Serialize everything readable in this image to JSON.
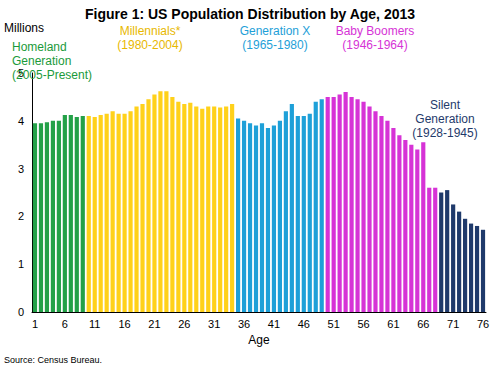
{
  "chart_data": {
    "type": "bar",
    "title": "Figure 1: US Population Distribution by Age, 2013",
    "ylabel": "Millions",
    "xlabel": "Age",
    "source": "Source: Census Bureau.",
    "categories": [
      "1",
      null,
      null,
      null,
      null,
      "6",
      null,
      null,
      null,
      null,
      "11",
      null,
      null,
      null,
      null,
      "16",
      null,
      null,
      null,
      null,
      "21",
      null,
      null,
      null,
      null,
      "26",
      null,
      null,
      null,
      null,
      "31",
      null,
      null,
      null,
      null,
      "36",
      null,
      null,
      null,
      null,
      "41",
      null,
      null,
      null,
      null,
      "46",
      null,
      null,
      null,
      null,
      "51",
      null,
      null,
      null,
      null,
      "56",
      null,
      null,
      null,
      null,
      "61",
      null,
      null,
      null,
      null,
      "66",
      null,
      null,
      null,
      null,
      "71",
      null,
      null,
      null,
      null,
      "76"
    ],
    "values": [
      3.95,
      3.95,
      3.97,
      4.0,
      4.0,
      4.12,
      4.12,
      4.08,
      4.1,
      4.1,
      4.08,
      4.12,
      4.15,
      4.2,
      4.15,
      4.15,
      4.2,
      4.3,
      4.35,
      4.45,
      4.55,
      4.62,
      4.62,
      4.5,
      4.4,
      4.35,
      4.38,
      4.3,
      4.25,
      4.3,
      4.3,
      4.28,
      4.3,
      4.35,
      4.05,
      4.0,
      3.95,
      3.9,
      3.95,
      3.85,
      3.9,
      4.0,
      4.2,
      4.35,
      4.1,
      4.1,
      4.15,
      4.4,
      4.45,
      4.5,
      4.5,
      4.55,
      4.6,
      4.5,
      4.45,
      4.4,
      4.3,
      4.2,
      4.1,
      4.0,
      3.85,
      3.7,
      3.6,
      3.5,
      3.4,
      3.55,
      2.6,
      2.6,
      2.5,
      2.55,
      2.25,
      2.1,
      1.95,
      1.85,
      1.8,
      1.72
    ],
    "colors": [
      "#24a148",
      "#24a148",
      "#24a148",
      "#24a148",
      "#24a148",
      "#24a148",
      "#24a148",
      "#24a148",
      "#24a148",
      "#ffd11a",
      "#ffd11a",
      "#ffd11a",
      "#ffd11a",
      "#ffd11a",
      "#ffd11a",
      "#ffd11a",
      "#ffd11a",
      "#ffd11a",
      "#ffd11a",
      "#ffd11a",
      "#ffd11a",
      "#ffd11a",
      "#ffd11a",
      "#ffd11a",
      "#ffd11a",
      "#ffd11a",
      "#ffd11a",
      "#ffd11a",
      "#ffd11a",
      "#ffd11a",
      "#ffd11a",
      "#ffd11a",
      "#ffd11a",
      "#ffd11a",
      "#1ea0d8",
      "#1ea0d8",
      "#1ea0d8",
      "#1ea0d8",
      "#1ea0d8",
      "#1ea0d8",
      "#1ea0d8",
      "#1ea0d8",
      "#1ea0d8",
      "#1ea0d8",
      "#1ea0d8",
      "#1ea0d8",
      "#1ea0d8",
      "#1ea0d8",
      "#1ea0d8",
      "#d633d6",
      "#d633d6",
      "#d633d6",
      "#d633d6",
      "#d633d6",
      "#d633d6",
      "#d633d6",
      "#d633d6",
      "#d633d6",
      "#d633d6",
      "#d633d6",
      "#d633d6",
      "#d633d6",
      "#d633d6",
      "#d633d6",
      "#d633d6",
      "#d633d6",
      "#d633d6",
      "#d633d6",
      "#1f3a6b",
      "#1f3a6b",
      "#1f3a6b",
      "#1f3a6b",
      "#1f3a6b",
      "#1f3a6b",
      "#1f3a6b",
      "#1f3a6b"
    ],
    "annotations": [
      {
        "lines": [
          "Homeland",
          "Generation",
          "(2005-Present)"
        ],
        "color": "#1a9a3a"
      },
      {
        "lines": [
          "Millennials*",
          "(1980-2004)"
        ],
        "color": "#e8b800"
      },
      {
        "lines": [
          "Generation X",
          "(1965-1980)"
        ],
        "color": "#1ea0d8"
      },
      {
        "lines": [
          "Baby Boomers",
          "(1946-1964)"
        ],
        "color": "#d633d6"
      },
      {
        "lines": [
          "Silent",
          "Generation",
          "(1928-1945)"
        ],
        "color": "#1f3a6b"
      }
    ],
    "ylim": [
      0,
      5
    ],
    "yticks": [
      0,
      1,
      2,
      3,
      4,
      5
    ],
    "grid": false
  }
}
